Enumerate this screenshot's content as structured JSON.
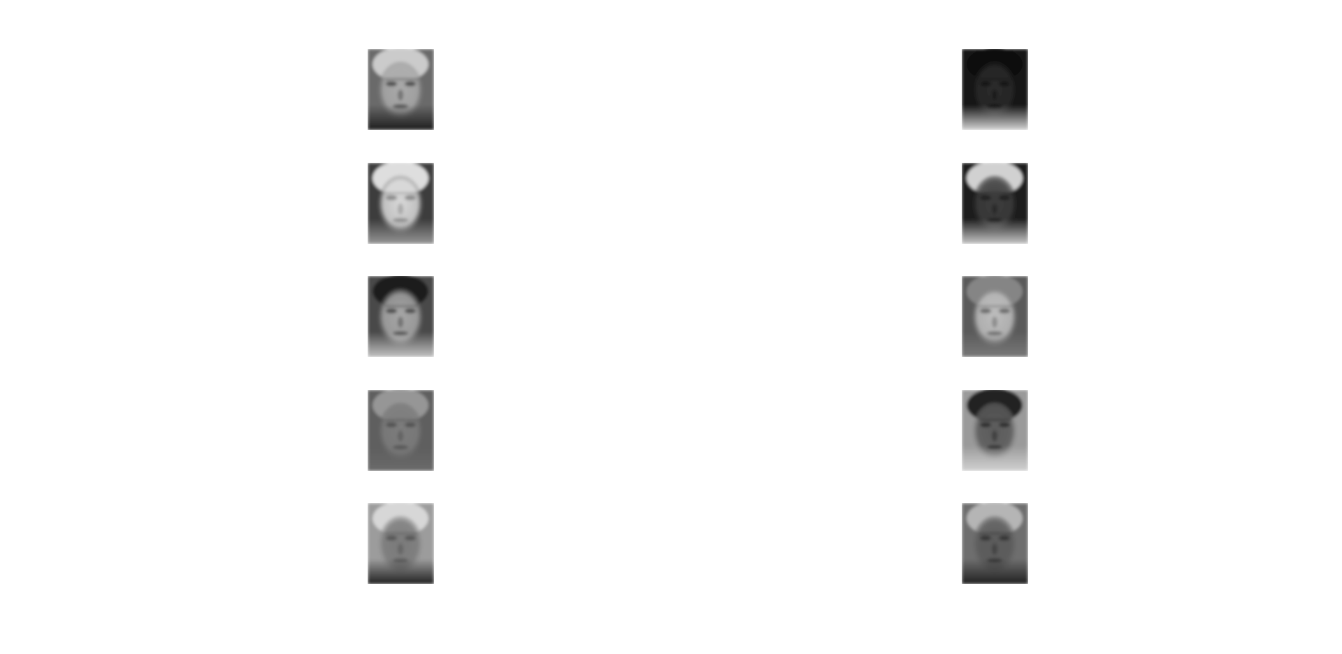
{
  "figure": {
    "background": "#ffffff",
    "grid": {
      "rows": 5,
      "columns": 2
    },
    "faces": [
      {
        "id": "face-1",
        "row": 1,
        "col": 1,
        "bg": "#6a6a6a",
        "skin": "#a9a9a9",
        "hair": "#d6d6d6",
        "feature": "#3a3a3a",
        "bottom": "#1a1a1a"
      },
      {
        "id": "face-2",
        "row": 1,
        "col": 2,
        "bg": "#141414",
        "skin": "#2a2a2a",
        "hair": "#0e0e0e",
        "feature": "#101010",
        "bottom": "#dcdcdc"
      },
      {
        "id": "face-3",
        "row": 2,
        "col": 1,
        "bg": "#3c3c3c",
        "skin": "#d8d8d8",
        "hair": "#f0f0f0",
        "feature": "#7a7a7a",
        "bottom": "#9a9a9a"
      },
      {
        "id": "face-4",
        "row": 2,
        "col": 2,
        "bg": "#1c1c1c",
        "skin": "#3c3c3c",
        "hair": "#e6e6e6",
        "feature": "#1a1a1a",
        "bottom": "#cfcfcf"
      },
      {
        "id": "face-5",
        "row": 3,
        "col": 1,
        "bg": "#4a4a4a",
        "skin": "#a6a6a6",
        "hair": "#181818",
        "feature": "#3a3a3a",
        "bottom": "#c8c8c8"
      },
      {
        "id": "face-6",
        "row": 3,
        "col": 2,
        "bg": "#5a5a5a",
        "skin": "#bdbdbd",
        "hair": "#8a8a8a",
        "feature": "#5a5a5a",
        "bottom": "#7a7a7a"
      },
      {
        "id": "face-7",
        "row": 4,
        "col": 1,
        "bg": "#5e5e5e",
        "skin": "#7c7c7c",
        "hair": "#9c9c9c",
        "feature": "#4a4a4a",
        "bottom": "#6a6a6a"
      },
      {
        "id": "face-8",
        "row": 4,
        "col": 2,
        "bg": "#9a9a9a",
        "skin": "#5a5a5a",
        "hair": "#161616",
        "feature": "#222222",
        "bottom": "#d4d4d4"
      },
      {
        "id": "face-9",
        "row": 5,
        "col": 1,
        "bg": "#9c9c9c",
        "skin": "#7a7a7a",
        "hair": "#dedede",
        "feature": "#4e4e4e",
        "bottom": "#1a1a1a"
      },
      {
        "id": "face-10",
        "row": 5,
        "col": 2,
        "bg": "#6e6e6e",
        "skin": "#5a5a5a",
        "hair": "#bcbcbc",
        "feature": "#2a2a2a",
        "bottom": "#1c1c1c"
      }
    ]
  }
}
